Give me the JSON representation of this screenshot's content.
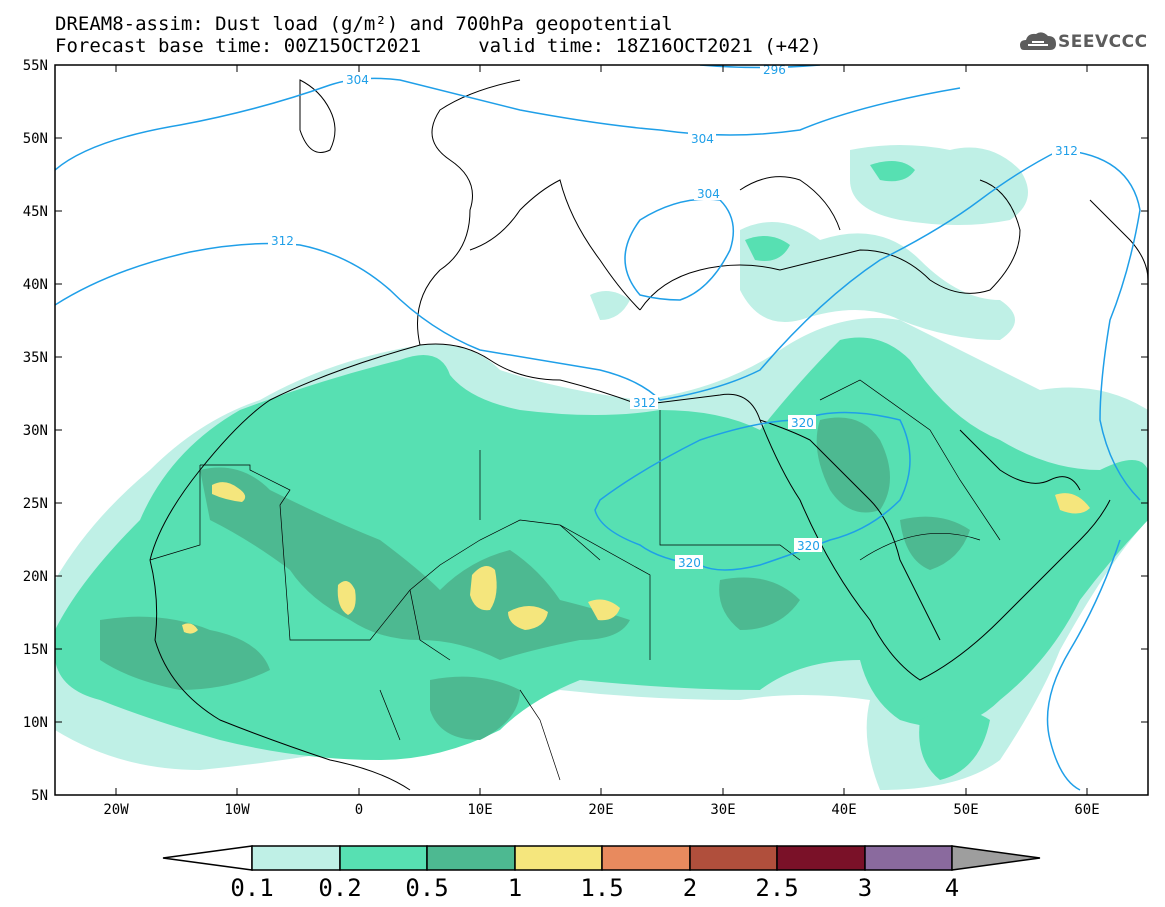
{
  "title_line1": "DREAM8-assim: Dust load (g/m²) and 700hPa geopotential",
  "title_line2": "Forecast base time: 00Z15OCT2021     valid time: 18Z16OCT2021 (+42)",
  "logo_text": "SEEVCCC",
  "lat_labels": [
    "55N",
    "50N",
    "45N",
    "40N",
    "35N",
    "30N",
    "25N",
    "20N",
    "15N",
    "10N",
    "5N"
  ],
  "lon_labels": [
    "20W",
    "10W",
    "0",
    "10E",
    "20E",
    "30E",
    "40E",
    "50E",
    "60E"
  ],
  "contour_labels": [
    "304",
    "296",
    "304",
    "304",
    "312",
    "312",
    "312",
    "320",
    "320",
    "320"
  ],
  "colorbar": {
    "labels": [
      "0.1",
      "0.2",
      "0.5",
      "1",
      "1.5",
      "2",
      "2.5",
      "3",
      "4"
    ],
    "colors": [
      "#ffffff",
      "#bff0e6",
      "#57e0b2",
      "#4db991",
      "#f5e67d",
      "#e88a5e",
      "#b04f3c",
      "#7a1128",
      "#8a6a9e",
      "#9e9e9e"
    ]
  },
  "colors": {
    "dust_0_1": "#bff0e6",
    "dust_0_2": "#57e0b2",
    "dust_0_5": "#4db991",
    "dust_1": "#f5e67d",
    "contour": "#1f9fe8"
  }
}
